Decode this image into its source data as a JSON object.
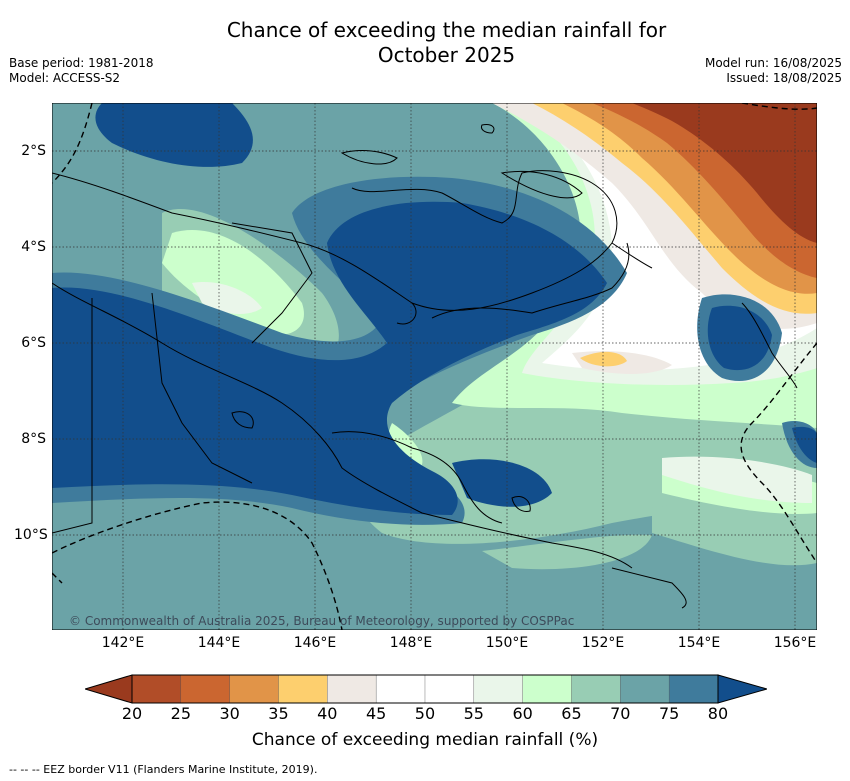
{
  "title_line1": "Chance of exceeding the median rainfall for",
  "title_line2": "October 2025",
  "base_period": "Base period: 1981-2018",
  "model": "Model: ACCESS-S2",
  "model_run": "Model run: 16/08/2025",
  "issued": "Issued: 18/08/2025",
  "lat_labels": [
    "2°S",
    "4°S",
    "6°S",
    "8°S",
    "10°S"
  ],
  "lon_labels": [
    "142°E",
    "144°E",
    "146°E",
    "148°E",
    "150°E",
    "152°E",
    "154°E",
    "156°E"
  ],
  "copyright": "© Commonwealth of Australia 2025, Bureau of Meteorology, supported by COSPPac",
  "colorbar": {
    "ticks": [
      "20",
      "25",
      "30",
      "35",
      "40",
      "45",
      "50",
      "55",
      "60",
      "65",
      "70",
      "75",
      "80"
    ],
    "label": "Chance of exceeding median rainfall (%)",
    "colors": [
      "#9a3a1e",
      "#b14d28",
      "#cb6630",
      "#e19448",
      "#fdcf6e",
      "#efe9e4",
      "#ffffff",
      "#ffffff",
      "#eaf6ea",
      "#ccffcc",
      "#98cdb4",
      "#6ba3a7",
      "#3f7b9c",
      "#124e8c"
    ]
  },
  "legend_text": "--  --  -- EEZ border V11 (Flanders Marine Institute, 2019)."
}
